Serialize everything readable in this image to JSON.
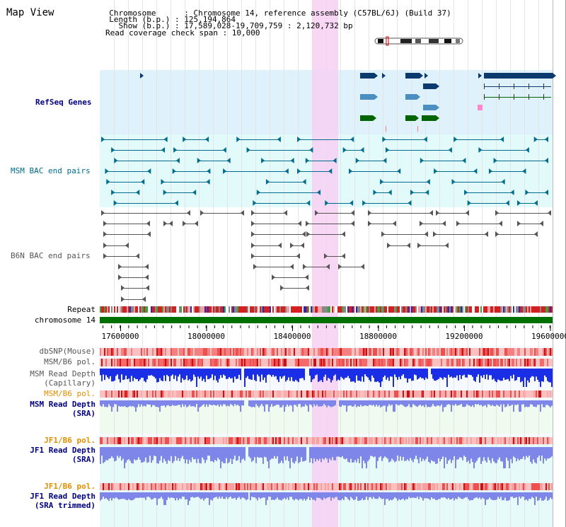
{
  "view": {
    "title": "Map View"
  },
  "info": {
    "chromosome_line": "  Chromosome      : Chromosome 14, reference assembly (C57BL/6J) (Build 37)",
    "length_line": "  Length (b.p.) : 125,194,864",
    "show_line": "    Show (b.p.) : 17,589,028-19,709,759 : 2,120,732 bp",
    "coverage_line": "Read coverage check span : 10,000"
  },
  "tracks": {
    "refseq": "RefSeq Genes",
    "msm_bac": "MSM BAC end pairs",
    "b6n_bac": "B6N BAC end pairs",
    "repeat": "Repeat",
    "chromosome": "chromosome 14",
    "dbsnp": "dbSNP(Mouse)",
    "msm_b6_pol_1": "MSM/B6 pol.",
    "msm_depth_cap_1": "MSM Read Depth",
    "msm_depth_cap_2": "(Capillary)",
    "msm_b6_pol_2": "MSM/B6 pol.",
    "msm_depth_sra_1": "MSM Read Depth",
    "msm_depth_sra_2": "(SRA)",
    "jf1_b6_pol_1": "JF1/B6 pol.",
    "jf1_depth_sra_1": "JF1 Read Depth",
    "jf1_depth_sra_2": "(SRA)",
    "jf1_b6_pol_2": "JF1/B6 pol.",
    "jf1_depth_trim_1": "JF1 Read Depth",
    "jf1_depth_trim_2": "(SRA trimmed)"
  },
  "axis": {
    "ticks": [
      "17600000",
      "18000000",
      "18400000",
      "18800000",
      "19200000",
      "19600000"
    ]
  },
  "colors": {
    "title_blue": "#000080",
    "msm_teal": "#006d8f",
    "b6n_gray": "#555555",
    "orange": "#e09000",
    "refseq_bg": "#dff2fb",
    "msm_bg": "#e3fafa",
    "highlight": "#f7d0f3",
    "gene_navy": "#0a3a6e",
    "gene_steel": "#4a8fbf",
    "gene_green": "#006400",
    "gene_pink": "#ff88cc",
    "depth_blue": "#1a2ee8",
    "depth_light": "#7f86ea",
    "chrom_green": "#007000"
  }
}
